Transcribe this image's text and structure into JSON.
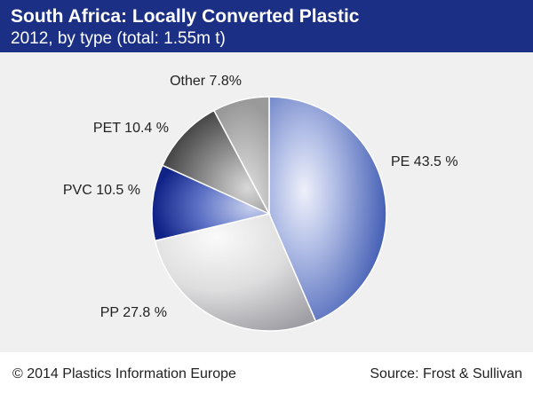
{
  "header": {
    "title": "South Africa: Locally Converted Plastic",
    "subtitle": "2012, by type (total: 1.55m t)"
  },
  "footer": {
    "copyright": "© 2014 Plastics Information Europe",
    "source": "Source: Frost & Sullivan"
  },
  "chart_data": {
    "type": "pie",
    "title": "South Africa: Locally Converted Plastic",
    "subtitle": "2012, by type (total: 1.55m t)",
    "unit": "%",
    "slices": [
      {
        "name": "PE",
        "value": 43.5,
        "label": "PE 43.5 %",
        "color": "#3a56b0"
      },
      {
        "name": "PP",
        "value": 27.8,
        "label": "PP 27.8 %",
        "color": "#b9b9bf"
      },
      {
        "name": "PVC",
        "value": 10.5,
        "label": "PVC 10.5 %",
        "color": "#1a2f92"
      },
      {
        "name": "PET",
        "value": 10.4,
        "label": "PET 10.4 %",
        "color": "#585858"
      },
      {
        "name": "Other",
        "value": 7.8,
        "label": "Other 7.8%",
        "color": "#a4a4a4"
      }
    ],
    "start": "top, clockwise",
    "legend": "none"
  }
}
